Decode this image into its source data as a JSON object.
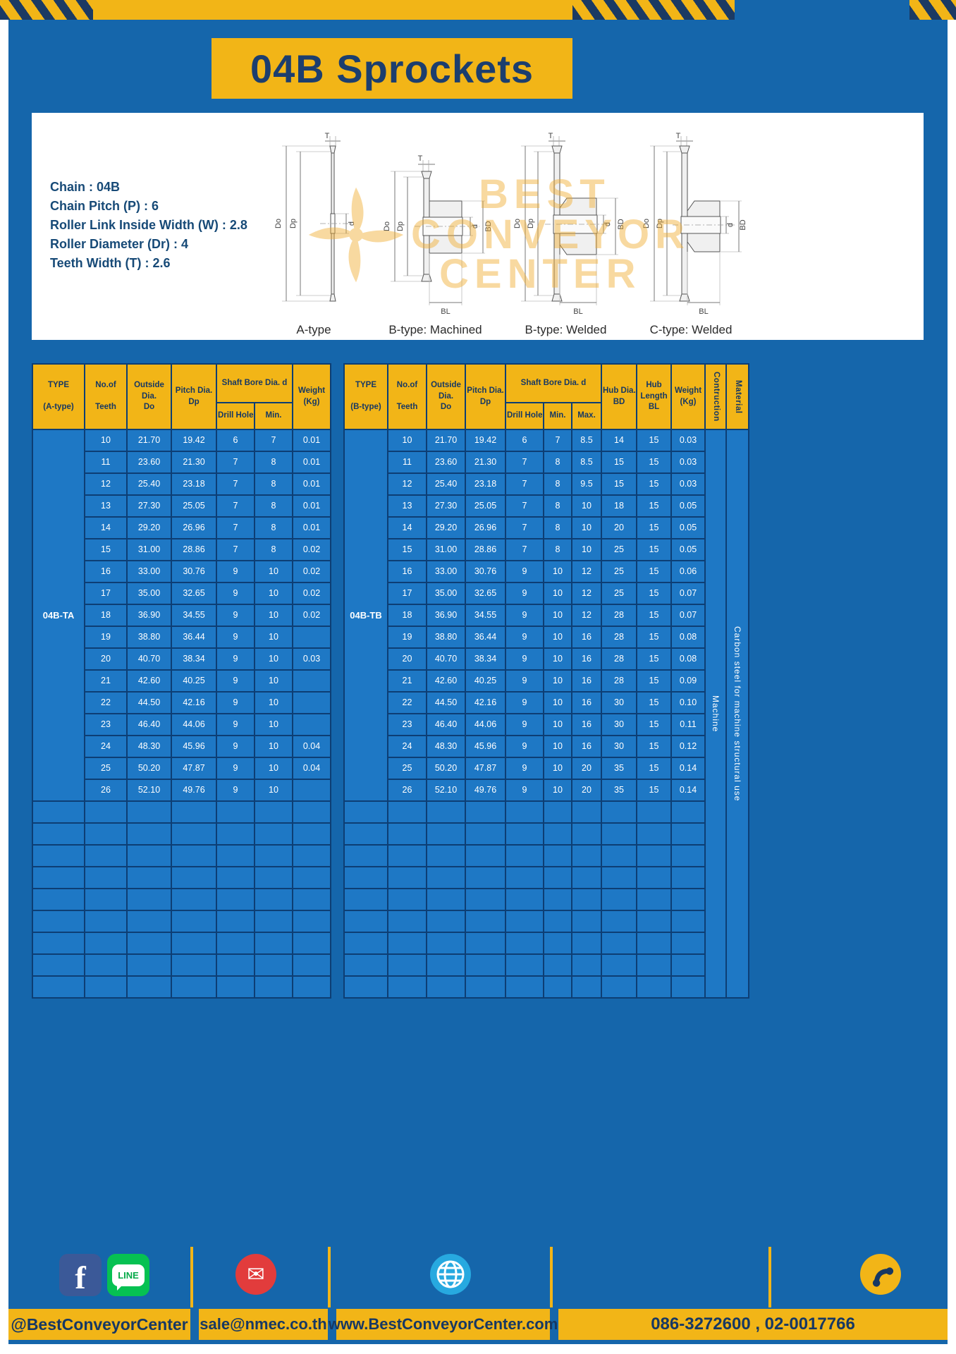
{
  "page": {
    "title": "04B Sprockets",
    "colors": {
      "accent_yellow": "#f2b517",
      "navy": "#173863",
      "page_blue": "#1566ab",
      "cell_blue": "#1e78c5",
      "grid_navy": "#0d3e74"
    }
  },
  "specs": {
    "lines": [
      "Chain : 04B",
      "Chain Pitch (P) : 6",
      "Roller Link Inside Width (W) : 2.8",
      "Roller Diameter (Dr) : 4",
      "Teeth Width (T) : 2.6"
    ]
  },
  "diagrams": {
    "captions": [
      "A-type",
      "B-type: Machined",
      "B-type: Welded",
      "C-type: Welded"
    ],
    "labels": {
      "do": "Do",
      "dp": "Dp",
      "d": "d",
      "t": "T",
      "bl": "BL",
      "bd": "BD"
    }
  },
  "watermark": {
    "line1": "BEST",
    "line2": "CONVEYOR",
    "line3": "CENTER"
  },
  "table_a": {
    "headers": {
      "type": "TYPE\n\n(A-type)",
      "teeth": "No.of\n\nTeeth",
      "outside": "Outside\nDia.\nDo",
      "pitch": "Pitch Dia.\nDp",
      "shaft_bore": "Shaft Bore Dia. d",
      "drill": "Drill Hole",
      "min": "Min.",
      "weight": "Weight\n(Kg)"
    },
    "type_label": "04B-TA",
    "rows": [
      [
        "10",
        "21.70",
        "19.42",
        "6",
        "7",
        "0.01"
      ],
      [
        "11",
        "23.60",
        "21.30",
        "7",
        "8",
        "0.01"
      ],
      [
        "12",
        "25.40",
        "23.18",
        "7",
        "8",
        "0.01"
      ],
      [
        "13",
        "27.30",
        "25.05",
        "7",
        "8",
        "0.01"
      ],
      [
        "14",
        "29.20",
        "26.96",
        "7",
        "8",
        "0.01"
      ],
      [
        "15",
        "31.00",
        "28.86",
        "7",
        "8",
        "0.02"
      ],
      [
        "16",
        "33.00",
        "30.76",
        "9",
        "10",
        "0.02"
      ],
      [
        "17",
        "35.00",
        "32.65",
        "9",
        "10",
        "0.02"
      ],
      [
        "18",
        "36.90",
        "34.55",
        "9",
        "10",
        "0.02"
      ],
      [
        "19",
        "38.80",
        "36.44",
        "9",
        "10",
        ""
      ],
      [
        "20",
        "40.70",
        "38.34",
        "9",
        "10",
        "0.03"
      ],
      [
        "21",
        "42.60",
        "40.25",
        "9",
        "10",
        ""
      ],
      [
        "22",
        "44.50",
        "42.16",
        "9",
        "10",
        ""
      ],
      [
        "23",
        "46.40",
        "44.06",
        "9",
        "10",
        ""
      ],
      [
        "24",
        "48.30",
        "45.96",
        "9",
        "10",
        "0.04"
      ],
      [
        "25",
        "50.20",
        "47.87",
        "9",
        "10",
        "0.04"
      ],
      [
        "26",
        "52.10",
        "49.76",
        "9",
        "10",
        ""
      ]
    ],
    "empty_row_count": 9
  },
  "table_b": {
    "headers": {
      "type": "TYPE\n\n(B-type)",
      "teeth": "No.of\n\nTeeth",
      "outside": "Outside\nDia.\nDo",
      "pitch": "Pitch Dia.\nDp",
      "shaft_bore": "Shaft Bore Dia. d",
      "drill": "Drill Hole",
      "min": "Min.",
      "max": "Max.",
      "hub_dia": "Hub Dia.\nBD",
      "hub_length": "Hub\nLength\nBL",
      "weight": "Weight\n(Kg)",
      "construction": "Contruction",
      "material": "Material"
    },
    "type_label": "04B-TB",
    "construction": "Machine",
    "material": "Carbon steel for machine structural use",
    "rows": [
      [
        "10",
        "21.70",
        "19.42",
        "6",
        "7",
        "8.5",
        "14",
        "15",
        "0.03"
      ],
      [
        "11",
        "23.60",
        "21.30",
        "7",
        "8",
        "8.5",
        "15",
        "15",
        "0.03"
      ],
      [
        "12",
        "25.40",
        "23.18",
        "7",
        "8",
        "9.5",
        "15",
        "15",
        "0.03"
      ],
      [
        "13",
        "27.30",
        "25.05",
        "7",
        "8",
        "10",
        "18",
        "15",
        "0.05"
      ],
      [
        "14",
        "29.20",
        "26.96",
        "7",
        "8",
        "10",
        "20",
        "15",
        "0.05"
      ],
      [
        "15",
        "31.00",
        "28.86",
        "7",
        "8",
        "10",
        "25",
        "15",
        "0.05"
      ],
      [
        "16",
        "33.00",
        "30.76",
        "9",
        "10",
        "12",
        "25",
        "15",
        "0.06"
      ],
      [
        "17",
        "35.00",
        "32.65",
        "9",
        "10",
        "12",
        "25",
        "15",
        "0.07"
      ],
      [
        "18",
        "36.90",
        "34.55",
        "9",
        "10",
        "12",
        "28",
        "15",
        "0.07"
      ],
      [
        "19",
        "38.80",
        "36.44",
        "9",
        "10",
        "16",
        "28",
        "15",
        "0.08"
      ],
      [
        "20",
        "40.70",
        "38.34",
        "9",
        "10",
        "16",
        "28",
        "15",
        "0.08"
      ],
      [
        "21",
        "42.60",
        "40.25",
        "9",
        "10",
        "16",
        "28",
        "15",
        "0.09"
      ],
      [
        "22",
        "44.50",
        "42.16",
        "9",
        "10",
        "16",
        "30",
        "15",
        "0.10"
      ],
      [
        "23",
        "46.40",
        "44.06",
        "9",
        "10",
        "16",
        "30",
        "15",
        "0.11"
      ],
      [
        "24",
        "48.30",
        "45.96",
        "9",
        "10",
        "16",
        "30",
        "15",
        "0.12"
      ],
      [
        "25",
        "50.20",
        "47.87",
        "9",
        "10",
        "20",
        "35",
        "15",
        "0.14"
      ],
      [
        "26",
        "52.10",
        "49.76",
        "9",
        "10",
        "20",
        "35",
        "15",
        "0.14"
      ]
    ],
    "empty_row_count": 9
  },
  "footer": {
    "facebook_label": "f",
    "line_label": "LINE",
    "email_glyph": "✉",
    "icons": {
      "facebook": "facebook-f-logo",
      "line": "line-speech-bubble",
      "email": "envelope",
      "website": "globe-grid",
      "phone": "telephone-handset"
    },
    "handle": "@BestConveyorCenter",
    "email": "sale@nmec.co.th",
    "website": "www.BestConveyorCenter.com",
    "phones": "086-3272600 , 02-0017766"
  }
}
